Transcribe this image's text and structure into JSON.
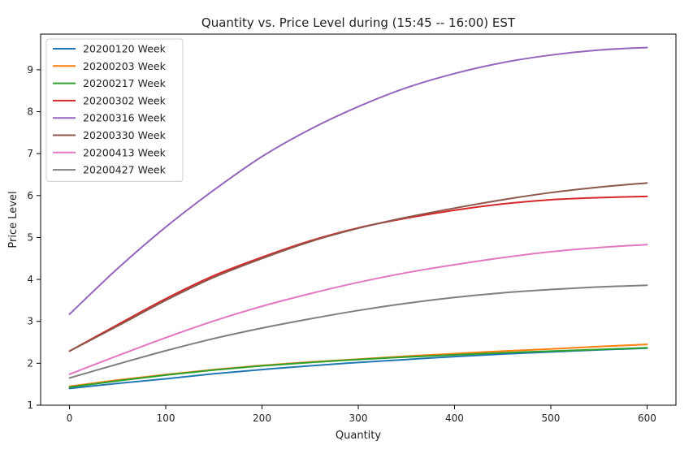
{
  "chart_data": {
    "type": "line",
    "title": "Quantity vs. Price Level during  (15:45 -- 16:00) EST",
    "xlabel": "Quantity",
    "ylabel": "Price Level",
    "xlim": [
      -30,
      630
    ],
    "ylim": [
      1,
      9.85
    ],
    "xticks": [
      0,
      100,
      200,
      300,
      400,
      500,
      600
    ],
    "yticks": [
      1,
      2,
      3,
      4,
      5,
      6,
      7,
      8,
      9
    ],
    "grid": false,
    "legend_position": "upper-left",
    "x": [
      0,
      50,
      100,
      150,
      200,
      250,
      300,
      350,
      400,
      450,
      500,
      550,
      600
    ],
    "series": [
      {
        "name": "20200120 Week",
        "color": "#1f77b4",
        "values": [
          1.4,
          1.52,
          1.63,
          1.75,
          1.85,
          1.94,
          2.02,
          2.09,
          2.16,
          2.22,
          2.27,
          2.32,
          2.36
        ]
      },
      {
        "name": "20200203 Week",
        "color": "#ff7f0e",
        "values": [
          1.45,
          1.6,
          1.73,
          1.85,
          1.95,
          2.03,
          2.1,
          2.17,
          2.23,
          2.29,
          2.34,
          2.4,
          2.45
        ]
      },
      {
        "name": "20200217 Week",
        "color": "#2ca02c",
        "values": [
          1.43,
          1.58,
          1.72,
          1.84,
          1.94,
          2.02,
          2.09,
          2.15,
          2.2,
          2.25,
          2.29,
          2.33,
          2.37
        ]
      },
      {
        "name": "20200302 Week",
        "color": "#d62728",
        "values": [
          2.29,
          2.92,
          3.54,
          4.09,
          4.53,
          4.92,
          5.23,
          5.46,
          5.65,
          5.8,
          5.9,
          5.95,
          5.98
        ]
      },
      {
        "name": "20200316 Week",
        "color": "#9467bd",
        "values": [
          3.17,
          4.26,
          5.25,
          6.13,
          6.93,
          7.58,
          8.12,
          8.57,
          8.91,
          9.17,
          9.35,
          9.47,
          9.53
        ]
      },
      {
        "name": "20200330 Week",
        "color": "#8c564b",
        "values": [
          2.29,
          2.89,
          3.5,
          4.05,
          4.5,
          4.9,
          5.22,
          5.48,
          5.7,
          5.9,
          6.07,
          6.2,
          6.3
        ]
      },
      {
        "name": "20200413 Week",
        "color": "#e377c2",
        "values": [
          1.74,
          2.18,
          2.61,
          3.01,
          3.36,
          3.66,
          3.93,
          4.16,
          4.35,
          4.52,
          4.66,
          4.76,
          4.83
        ]
      },
      {
        "name": "20200427 Week",
        "color": "#7f7f7f",
        "values": [
          1.65,
          1.98,
          2.3,
          2.59,
          2.84,
          3.06,
          3.26,
          3.43,
          3.57,
          3.68,
          3.76,
          3.82,
          3.86
        ]
      }
    ]
  }
}
